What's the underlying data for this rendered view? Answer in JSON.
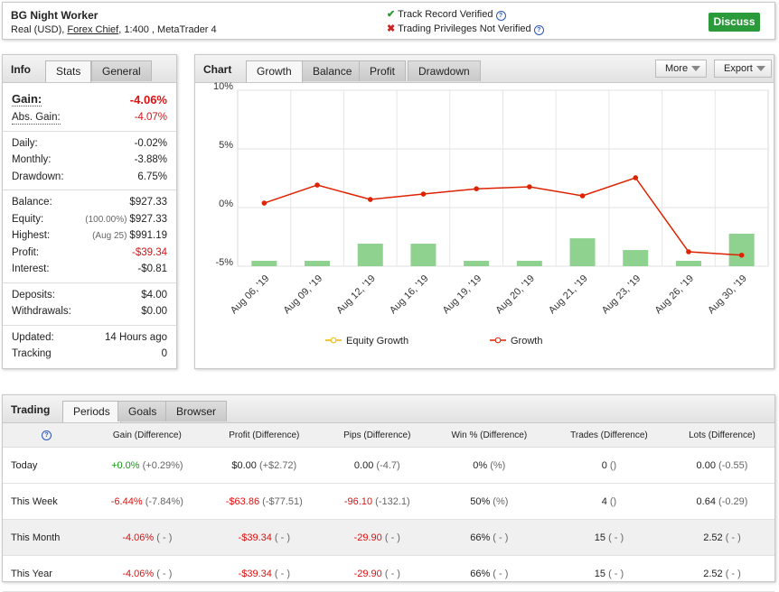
{
  "header": {
    "title": "BG Night Worker",
    "account_type": "Real (USD),",
    "broker": "Forex Chief",
    "account_details": ", 1:400 , MetaTrader 4",
    "statuses": [
      "Track Record Verified",
      "Trading Privileges Not Verified"
    ],
    "button": "Discuss"
  },
  "info": {
    "title": "Info",
    "tabs": [
      "Stats",
      "General"
    ],
    "groups": [
      [
        {
          "label": "Gain:",
          "value": "-4.06%",
          "color": "#dd1111"
        },
        {
          "label": "Abs. Gain:",
          "value": "-4.07%",
          "color": "#dd1111"
        }
      ],
      [
        {
          "label": "Daily:",
          "value": "-0.02%"
        },
        {
          "label": "Monthly:",
          "value": "-3.88%"
        },
        {
          "label": "Drawdown:",
          "value": "6.75%"
        }
      ],
      [
        {
          "label": "Balance:",
          "value": "$927.33"
        },
        {
          "label": "Equity:",
          "note": "(100.00%)",
          "value": "$927.33"
        },
        {
          "label": "Highest:",
          "note": "(Aug 25)",
          "value": "$991.19"
        },
        {
          "label": "Profit:",
          "value": "-$39.34",
          "color": "#dd1111"
        },
        {
          "label": "Interest:",
          "value": "-$0.81"
        }
      ],
      [
        {
          "label": "Deposits:",
          "value": "$4.00"
        },
        {
          "label": "Withdrawals:",
          "value": "$0.00"
        }
      ],
      [
        {
          "label": "Updated:",
          "value": "14 Hours ago"
        },
        {
          "label": "Tracking",
          "value": "0"
        }
      ]
    ]
  },
  "chart_panel": {
    "title": "Chart",
    "tabs": [
      "Growth",
      "Balance",
      "Profit",
      "Drawdown"
    ],
    "menus": [
      "More",
      "Export"
    ]
  },
  "chart_data": {
    "type": "line",
    "categories": [
      "Aug 06, '19",
      "Aug 09, '19",
      "Aug 12, '19",
      "Aug 16, '19",
      "Aug 19, '19",
      "Aug 20, '19",
      "Aug 21, '19",
      "Aug 23, '19",
      "Aug 26, '19",
      "Aug 30, '19"
    ],
    "series": [
      {
        "type": "bar",
        "color": "#8fd18f",
        "values": [
          -4.54,
          -4.54,
          -3.08,
          -3.08,
          -4.54,
          -4.54,
          -2.62,
          -3.62,
          -4.54,
          -2.23
        ]
      },
      {
        "name": "Equity Growth",
        "color": "#f0b400",
        "values": [
          null,
          null,
          null,
          null,
          null,
          null,
          null,
          null,
          null,
          null
        ]
      },
      {
        "name": "Growth",
        "color": "#dd2200",
        "values": [
          0.38,
          1.92,
          0.69,
          1.15,
          1.6,
          1.77,
          1.0,
          2.54,
          -3.77,
          -4.06
        ]
      }
    ],
    "ylim": [
      -5,
      10
    ],
    "yticks": [
      {
        "value": -5,
        "label": "-5%"
      },
      {
        "value": 0,
        "label": "0%"
      },
      {
        "value": 5,
        "label": "5%"
      },
      {
        "value": 10,
        "label": "10%"
      }
    ],
    "grid": true
  },
  "trading": {
    "title": "Trading",
    "tabs": [
      "Periods",
      "Goals",
      "Browser"
    ],
    "columns": [
      "Gain (Difference)",
      "Profit (Difference)",
      "Pips (Difference)",
      "Win % (Difference)",
      "Trades (Difference)",
      "Lots (Difference)"
    ],
    "rows": [
      {
        "label": "Today",
        "cells": [
          {
            "value": "+0.0%",
            "diff": "(+0.29%)",
            "color": "#119911"
          },
          {
            "value": "$0.00",
            "diff": "(+$2.72)"
          },
          {
            "value": "0.00",
            "diff": "(-4.7)"
          },
          {
            "value": "0%",
            "diff": "(%)"
          },
          {
            "value": "0",
            "diff": "()"
          },
          {
            "value": "0.00",
            "diff": "(-0.55)"
          }
        ]
      },
      {
        "label": "This Week",
        "cells": [
          {
            "value": "-6.44%",
            "diff": "(-7.84%)",
            "color": "#dd1111"
          },
          {
            "value": "-$63.86",
            "diff": "(-$77.51)",
            "color": "#dd1111"
          },
          {
            "value": "-96.10",
            "diff": "(-132.1)",
            "color": "#dd1111"
          },
          {
            "value": "50%",
            "diff": "(%)"
          },
          {
            "value": "4",
            "diff": "()"
          },
          {
            "value": "0.64",
            "diff": "(-0.29)"
          }
        ]
      },
      {
        "label": "This Month",
        "shade": true,
        "cells": [
          {
            "value": "-4.06%",
            "diff": "( - )",
            "color": "#dd1111"
          },
          {
            "value": "-$39.34",
            "diff": "( - )",
            "color": "#dd1111"
          },
          {
            "value": "-29.90",
            "diff": "( - )",
            "color": "#dd1111"
          },
          {
            "value": "66%",
            "diff": "( - )"
          },
          {
            "value": "15",
            "diff": "( - )"
          },
          {
            "value": "2.52",
            "diff": "( - )"
          }
        ]
      },
      {
        "label": "This Year",
        "cells": [
          {
            "value": "-4.06%",
            "diff": "( - )",
            "color": "#dd1111"
          },
          {
            "value": "-$39.34",
            "diff": "( - )",
            "color": "#dd1111"
          },
          {
            "value": "-29.90",
            "diff": "( - )",
            "color": "#dd1111"
          },
          {
            "value": "66%",
            "diff": "( - )"
          },
          {
            "value": "15",
            "diff": "( - )"
          },
          {
            "value": "2.52",
            "diff": "( - )"
          }
        ]
      }
    ]
  }
}
